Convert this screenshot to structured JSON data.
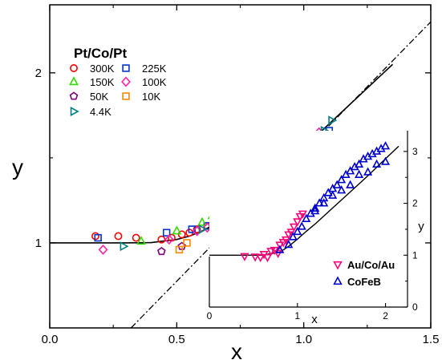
{
  "chart_data": [
    {
      "type": "scatter",
      "xlabel": "x",
      "ylabel": "y",
      "xlim": [
        0.0,
        1.5
      ],
      "ylim": [
        0.5,
        2.4
      ],
      "x_tick_labels": [
        "0.0",
        "0.5",
        "1.0",
        "1.5"
      ],
      "x_ticks": [
        0.0,
        0.5,
        1.0,
        1.5
      ],
      "y_tick_labels": [
        "1",
        "2"
      ],
      "y_ticks": [
        1,
        2
      ],
      "legend_title": "Pt/Co/Pt",
      "legend_position": "top-left",
      "lines": [
        {
          "style": "solid",
          "x": [
            0.0,
            0.1,
            0.2,
            0.3,
            0.4,
            0.5,
            0.55,
            0.6,
            0.65,
            0.7,
            0.75,
            0.8,
            0.85,
            0.9,
            0.95,
            1.0,
            1.05,
            1.1,
            1.15,
            1.2,
            1.25,
            1.3,
            1.35
          ],
          "y": [
            1.0,
            1.0,
            1.0,
            1.0,
            1.002,
            1.02,
            1.04,
            1.07,
            1.11,
            1.16,
            1.22,
            1.28,
            1.35,
            1.42,
            1.49,
            1.56,
            1.63,
            1.7,
            1.77,
            1.84,
            1.91,
            1.98,
            2.05
          ]
        },
        {
          "style": "dash-dot",
          "x": [
            0.32,
            1.5
          ],
          "y": [
            0.5,
            2.3
          ]
        }
      ],
      "series": [
        {
          "name": "300K",
          "marker": "circle",
          "color": "#ff0000",
          "x": [
            0.18,
            0.27,
            0.34,
            0.44,
            0.48,
            0.52,
            0.55,
            0.58,
            0.62,
            0.66,
            0.72,
            0.76,
            0.8,
            0.84,
            0.88,
            0.92,
            0.96,
            0.99,
            1.02,
            1.05,
            1.08
          ],
          "y": [
            1.04,
            1.04,
            1.03,
            1.02,
            1.03,
            1.05,
            1.06,
            1.08,
            1.1,
            1.14,
            1.18,
            1.22,
            1.27,
            1.31,
            1.36,
            1.41,
            1.45,
            1.5,
            1.54,
            1.58,
            1.62
          ]
        },
        {
          "name": "225K",
          "marker": "square",
          "color": "#0033cc",
          "x": [
            0.19,
            0.46,
            0.56,
            0.62,
            0.66,
            0.7,
            0.74,
            0.78,
            0.82,
            0.86,
            0.9,
            0.94,
            0.98,
            1.02,
            1.05,
            1.08,
            1.1
          ],
          "y": [
            1.03,
            1.06,
            1.08,
            1.1,
            1.13,
            1.16,
            1.2,
            1.24,
            1.28,
            1.33,
            1.38,
            1.43,
            1.47,
            1.52,
            1.56,
            1.61,
            1.66
          ]
        },
        {
          "name": "150K",
          "marker": "triangle-up",
          "color": "#33dd00",
          "x": [
            0.36,
            0.5,
            0.6,
            0.64,
            0.68,
            0.72,
            0.76,
            0.8,
            0.84,
            0.88,
            0.92,
            0.96,
            1.0
          ],
          "y": [
            1.01,
            1.07,
            1.12,
            1.16,
            1.19,
            1.22,
            1.25,
            1.27,
            1.31,
            1.36,
            1.41,
            1.46,
            1.51
          ]
        },
        {
          "name": "100K",
          "marker": "diamond",
          "color": "#ff22aa",
          "x": [
            0.21,
            0.47,
            0.58,
            0.62,
            0.7,
            0.76,
            0.8,
            0.86,
            0.9,
            0.94,
            0.98,
            1.02,
            1.04,
            1.06
          ],
          "y": [
            0.96,
            1.02,
            1.07,
            1.09,
            1.15,
            1.21,
            1.27,
            1.33,
            1.37,
            1.42,
            1.47,
            1.55,
            1.6,
            1.65
          ]
        },
        {
          "name": "50K",
          "marker": "pentagon",
          "color": "#800080",
          "x": [
            0.44,
            0.52,
            0.68,
            0.73,
            0.78,
            0.83
          ],
          "y": [
            0.95,
            0.98,
            1.05,
            1.08,
            1.12,
            1.15
          ]
        },
        {
          "name": "10K",
          "marker": "square",
          "color": "#ff8800",
          "x": [
            0.51,
            0.54,
            0.72,
            0.8,
            0.88,
            0.94,
            0.99
          ],
          "y": [
            0.96,
            1.0,
            1.13,
            1.2,
            1.29,
            1.38,
            1.44
          ]
        },
        {
          "name": "4.4K",
          "marker": "triangle-right",
          "color": "#008080",
          "x": [
            0.29,
            0.6,
            0.73,
            0.86,
            0.98,
            1.08,
            1.11
          ],
          "y": [
            0.98,
            1.08,
            1.14,
            1.26,
            1.41,
            1.66,
            1.72
          ]
        }
      ]
    },
    {
      "type": "scatter",
      "xlabel": "x",
      "ylabel": "y",
      "xlim": [
        0.0,
        2.25
      ],
      "ylim": [
        0.0,
        3.4
      ],
      "x_tick_labels": [
        "0",
        "1",
        "2"
      ],
      "x_ticks": [
        0,
        1,
        2
      ],
      "y_tick_labels": [
        "0",
        "1",
        "2",
        "3"
      ],
      "y_ticks": [
        0,
        1,
        2,
        3
      ],
      "legend_position": "bottom-right",
      "lines": [
        {
          "style": "solid",
          "x": [
            0.0,
            0.2,
            0.4,
            0.6,
            0.8,
            0.9,
            1.0,
            1.1,
            1.2,
            1.4,
            1.6,
            1.8,
            2.0,
            2.15
          ],
          "y": [
            1.0,
            1.0,
            1.0,
            1.0,
            1.06,
            1.17,
            1.31,
            1.46,
            1.6,
            1.91,
            2.22,
            2.53,
            2.86,
            3.1
          ]
        }
      ],
      "series": [
        {
          "name": "Au/Co/Au",
          "marker": "triangle-down",
          "color": "#ff0077",
          "x": [
            0.4,
            0.52,
            0.58,
            0.62,
            0.66,
            0.7,
            0.74,
            0.78,
            0.8,
            0.84,
            0.87,
            0.9,
            0.93,
            0.96,
            1.0,
            1.03,
            1.06
          ],
          "y": [
            0.98,
            0.97,
            0.96,
            1.02,
            0.96,
            1.08,
            1.1,
            1.04,
            1.2,
            1.25,
            1.3,
            1.4,
            1.45,
            1.55,
            1.65,
            1.75,
            1.8
          ]
        },
        {
          "name": "CoFeB",
          "marker": "triangle-up",
          "color": "#0000cc",
          "x": [
            0.8,
            0.9,
            0.95,
            1.0,
            1.05,
            1.1,
            1.15,
            1.2,
            1.25,
            1.3,
            1.35,
            1.4,
            1.45,
            1.5,
            1.55,
            1.6,
            1.65,
            1.7,
            1.75,
            1.8,
            1.85,
            1.9,
            1.95,
            2.0,
            2.0,
            1.9,
            1.8,
            1.7,
            1.6,
            1.5,
            1.4,
            1.3,
            1.2
          ],
          "y": [
            1.1,
            1.2,
            1.35,
            1.45,
            1.55,
            1.7,
            1.8,
            1.9,
            2.0,
            2.1,
            2.2,
            2.28,
            2.35,
            2.45,
            2.55,
            2.62,
            2.7,
            2.75,
            2.85,
            2.9,
            2.95,
            3.0,
            3.05,
            3.1,
            2.8,
            2.75,
            2.6,
            2.55,
            2.35,
            2.25,
            2.15,
            2.0,
            1.85
          ]
        }
      ]
    }
  ]
}
